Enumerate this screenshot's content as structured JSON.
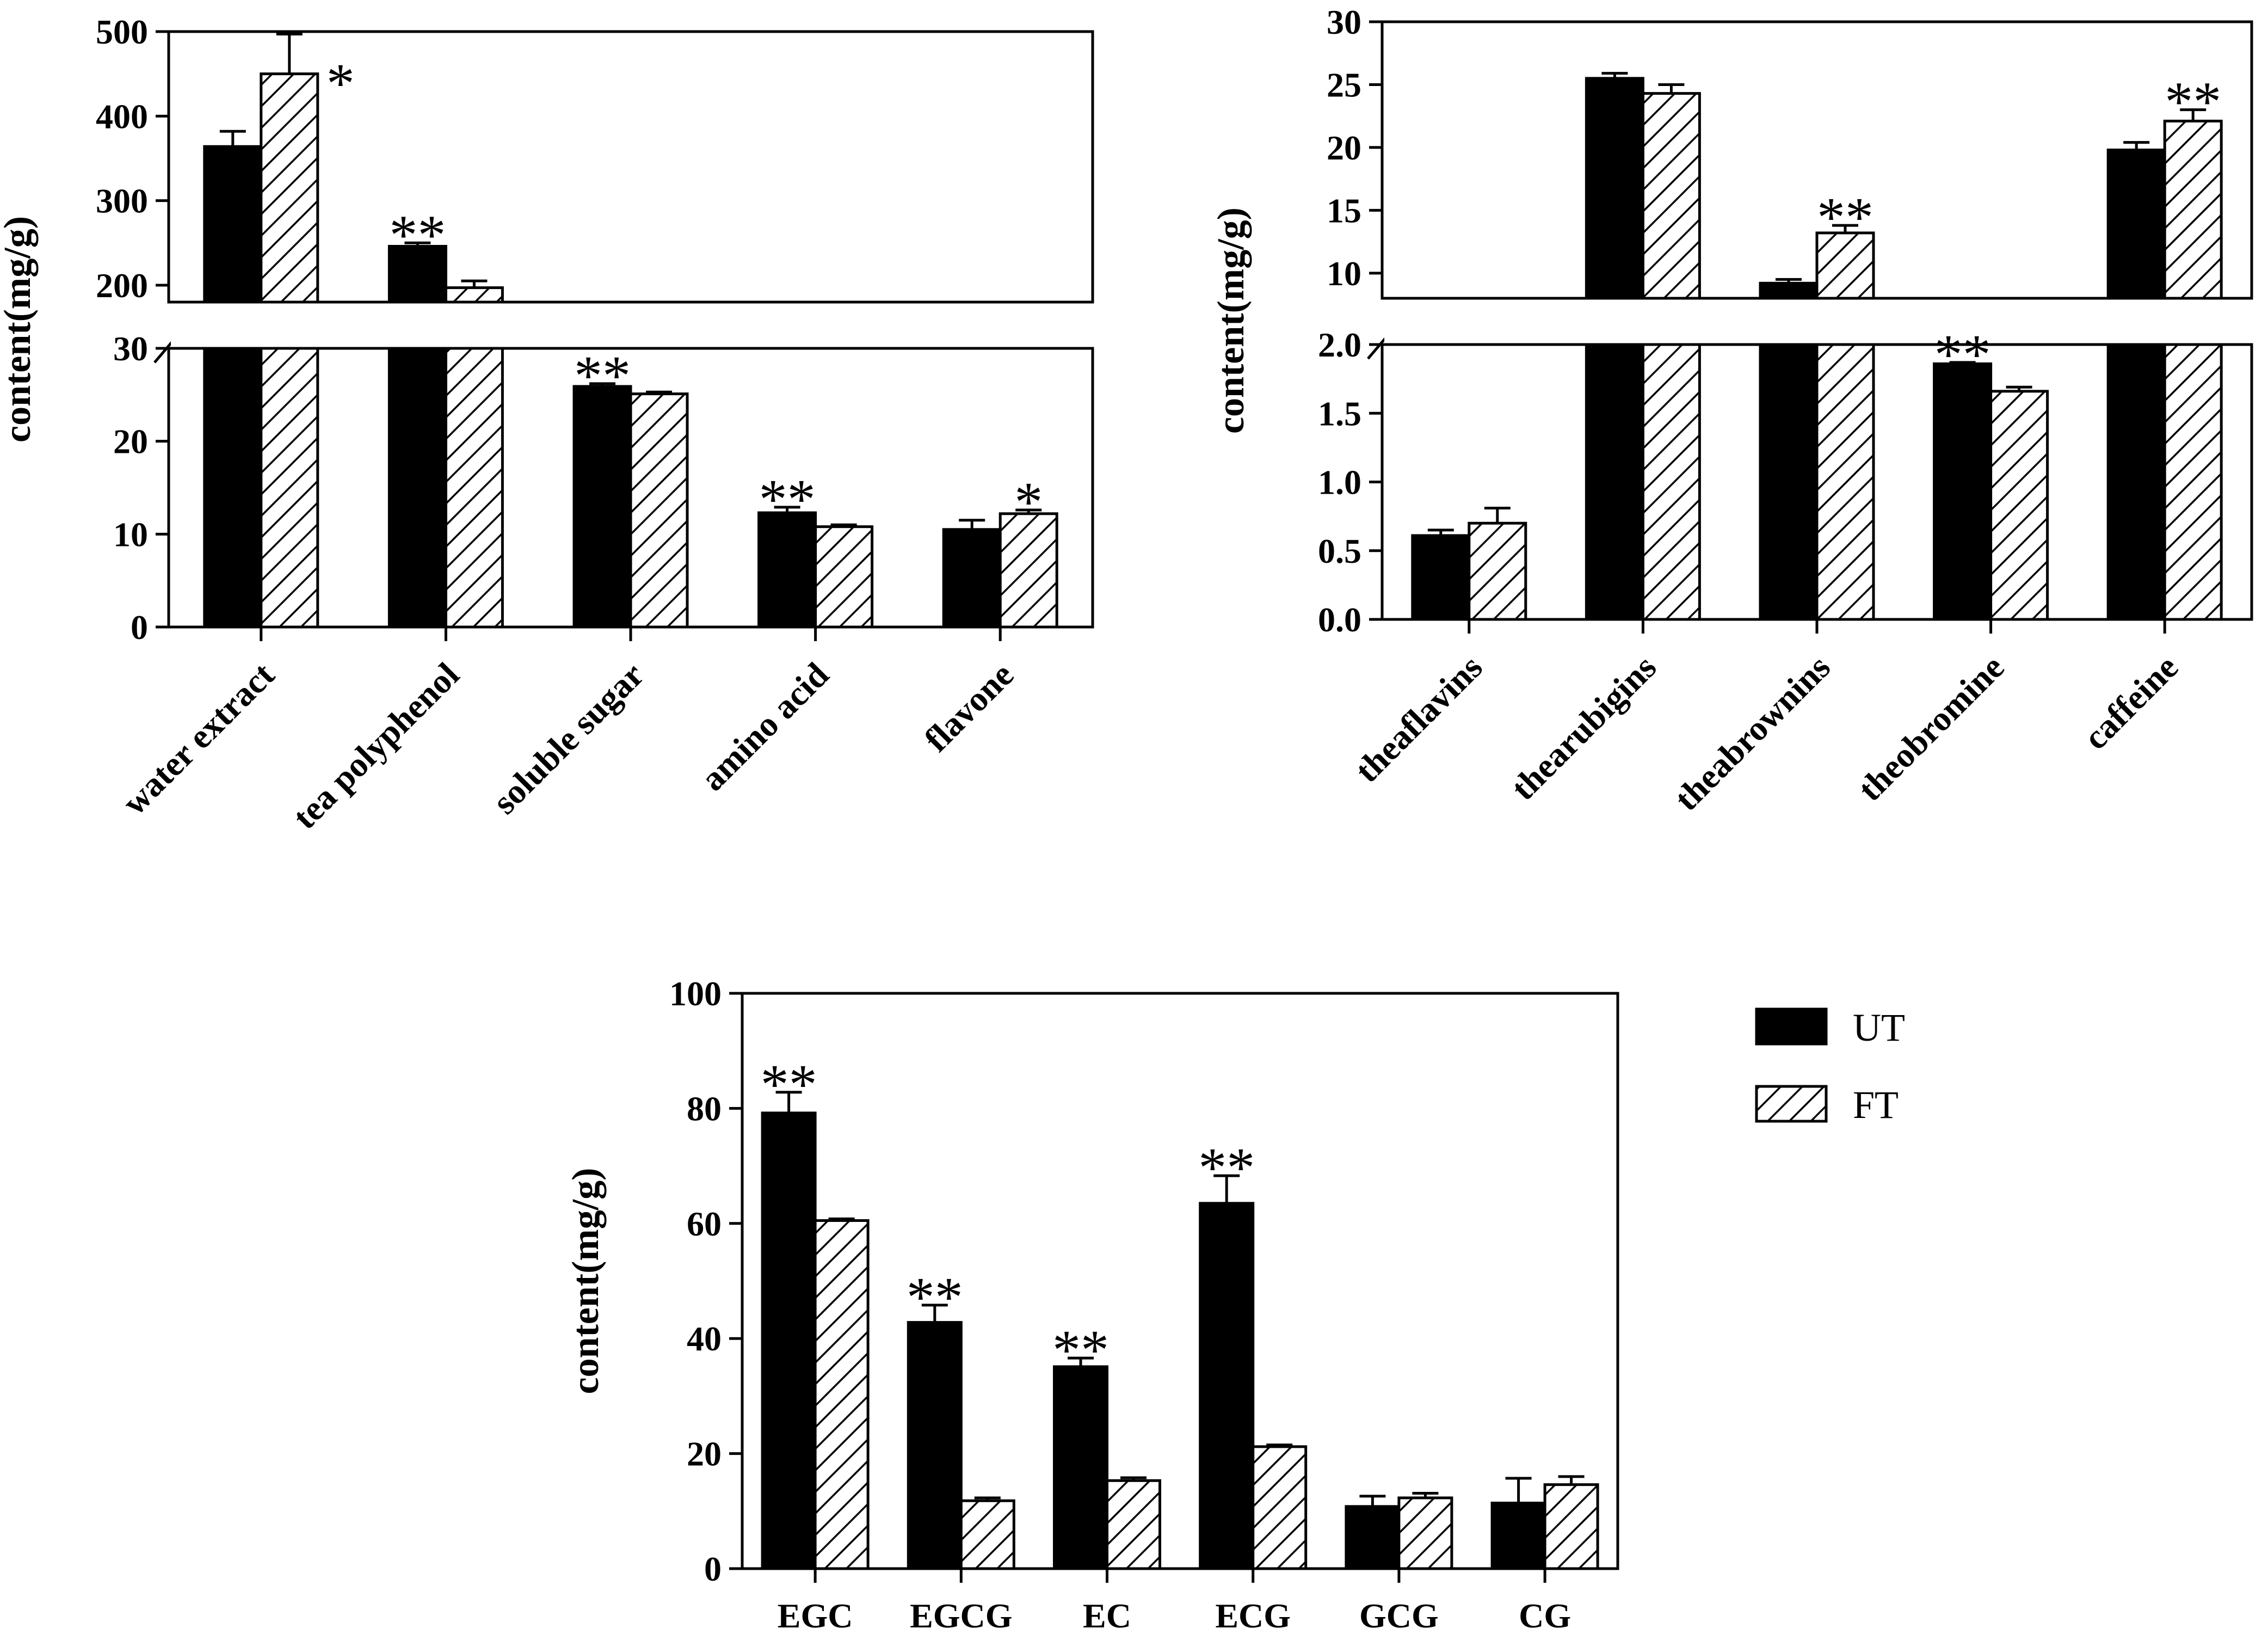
{
  "legend": {
    "items": [
      {
        "label": "UT",
        "style": "solid",
        "color": "#000000"
      },
      {
        "label": "FT",
        "style": "hatched",
        "color": "#000000"
      }
    ]
  },
  "chart_data": [
    {
      "type": "bar",
      "id": "chart-a",
      "ylabel": "content(mg/g)",
      "axis_break": true,
      "lower_segment": {
        "ylim": [
          0,
          30
        ],
        "ticks": [
          "0",
          "10",
          "20",
          "30"
        ]
      },
      "upper_segment": {
        "ylim": [
          180,
          500
        ],
        "ticks": [
          "200",
          "300",
          "400",
          "500"
        ]
      },
      "categories": [
        "water extract",
        "tea polyphenol",
        "soluble sugar",
        "amino acid",
        "flavone"
      ],
      "series": [
        {
          "name": "UT",
          "values": [
            364,
            246,
            25.9,
            12.3,
            10.5
          ],
          "errors": [
            18,
            4,
            0.3,
            0.6,
            1.0
          ]
        },
        {
          "name": "FT",
          "values": [
            450,
            197,
            25.1,
            10.8,
            12.2
          ],
          "errors": [
            47,
            8,
            0.2,
            0.2,
            0.4
          ]
        }
      ],
      "significance": [
        {
          "category": "water extract",
          "series": "FT",
          "label": "*"
        },
        {
          "category": "tea polyphenol",
          "series": "UT",
          "label": "**"
        },
        {
          "category": "soluble sugar",
          "series": "UT",
          "label": "**"
        },
        {
          "category": "amino acid",
          "series": "UT",
          "label": "**"
        },
        {
          "category": "flavone",
          "series": "FT",
          "label": "*"
        }
      ]
    },
    {
      "type": "bar",
      "id": "chart-b",
      "ylabel": "content(mg/g)",
      "axis_break": true,
      "lower_segment": {
        "ylim": [
          0,
          2.0
        ],
        "ticks": [
          "0.0",
          "0.5",
          "1.0",
          "1.5",
          "2.0"
        ]
      },
      "upper_segment": {
        "ylim": [
          8,
          30
        ],
        "ticks": [
          "10",
          "15",
          "20",
          "25",
          "30"
        ]
      },
      "categories": [
        "theaflavins",
        "thearubigins",
        "theabrownins",
        "theobromine",
        "caffeine"
      ],
      "series": [
        {
          "name": "UT",
          "values": [
            0.61,
            25.5,
            9.2,
            1.86,
            19.8
          ],
          "errors": [
            0.04,
            0.4,
            0.3,
            0.01,
            0.6
          ]
        },
        {
          "name": "FT",
          "values": [
            0.7,
            24.3,
            13.2,
            1.66,
            22.1
          ],
          "errors": [
            0.11,
            0.7,
            0.6,
            0.03,
            0.9
          ]
        }
      ],
      "significance": [
        {
          "category": "theabrownins",
          "series": "FT",
          "label": "**"
        },
        {
          "category": "theobromine",
          "series": "UT",
          "label": "**"
        },
        {
          "category": "caffeine",
          "series": "FT",
          "label": "**"
        }
      ]
    },
    {
      "type": "bar",
      "id": "chart-c",
      "ylabel": "content(mg/g)",
      "axis_break": false,
      "ylim": [
        0,
        100
      ],
      "ticks": [
        "0",
        "20",
        "40",
        "60",
        "80",
        "100"
      ],
      "categories": [
        "EGC",
        "EGCG",
        "EC",
        "ECG",
        "GCG",
        "CG"
      ],
      "series": [
        {
          "name": "UT",
          "values": [
            79.2,
            42.8,
            35.1,
            63.5,
            10.8,
            11.4
          ],
          "errors": [
            3.6,
            3.0,
            1.5,
            4.8,
            1.8,
            4.3
          ]
        },
        {
          "name": "FT",
          "values": [
            60.5,
            11.8,
            15.3,
            21.2,
            12.3,
            14.6
          ],
          "errors": [
            0.3,
            0.5,
            0.5,
            0.3,
            0.8,
            1.4
          ]
        }
      ],
      "significance": [
        {
          "category": "EGC",
          "series": "UT",
          "label": "**"
        },
        {
          "category": "EGCG",
          "series": "UT",
          "label": "**"
        },
        {
          "category": "EC",
          "series": "UT",
          "label": "**"
        },
        {
          "category": "ECG",
          "series": "UT",
          "label": "**"
        }
      ]
    }
  ]
}
